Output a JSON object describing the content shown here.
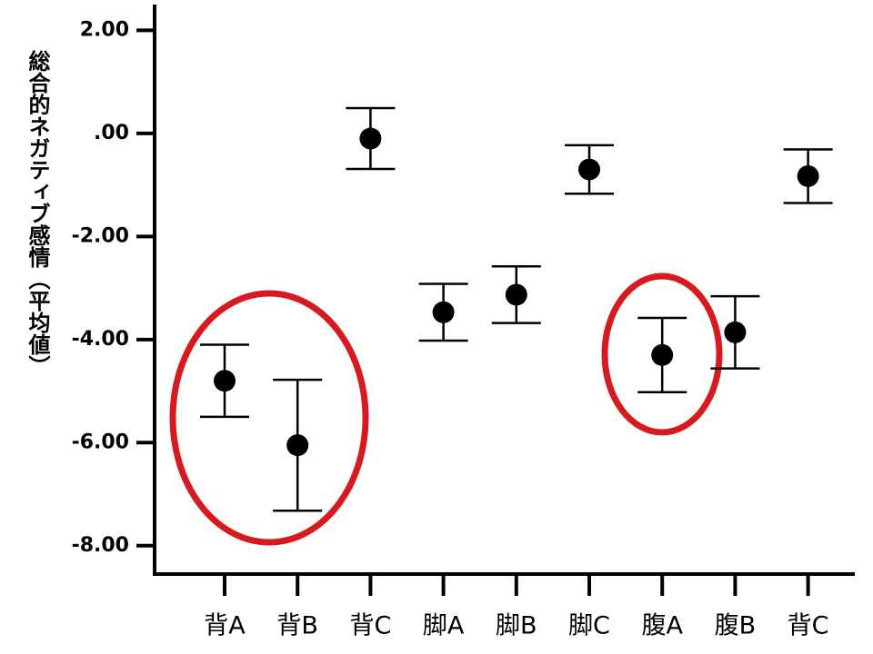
{
  "chart_data": {
    "type": "errorbar",
    "y_label": "総合的ネガティブ感情（平均値）",
    "categories": [
      "背A",
      "背B",
      "背C",
      "脚A",
      "脚B",
      "脚C",
      "腹A",
      "腹B",
      "背C"
    ],
    "values": [
      -4.8,
      -6.05,
      -0.1,
      -3.47,
      -3.13,
      -0.7,
      -4.3,
      -3.86,
      -0.83
    ],
    "errors": [
      0.7,
      1.27,
      0.59,
      0.55,
      0.55,
      0.47,
      0.72,
      0.7,
      0.52
    ],
    "color": "#000000",
    "ylim": [
      -8.55,
      2.5
    ],
    "yticks": [
      {
        "value": 2,
        "label": "2.00"
      },
      {
        "value": 0,
        "label": ".00"
      },
      {
        "value": -2,
        "label": "-2.00"
      },
      {
        "value": -4,
        "label": "-4.00"
      },
      {
        "value": -6,
        "label": "-6.00"
      },
      {
        "value": -8,
        "label": "-8.00"
      }
    ]
  }
}
